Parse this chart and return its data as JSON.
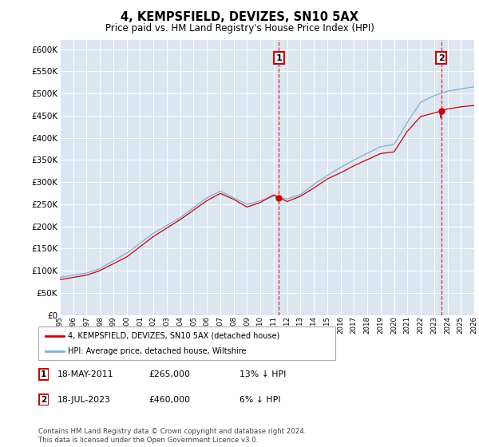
{
  "title": "4, KEMPSFIELD, DEVIZES, SN10 5AX",
  "subtitle": "Price paid vs. HM Land Registry's House Price Index (HPI)",
  "sale1_date": "18-MAY-2011",
  "sale1_price": 265000,
  "sale1_label": "1",
  "sale1_year": 2011.38,
  "sale2_date": "18-JUL-2023",
  "sale2_price": 460000,
  "sale2_label": "2",
  "sale2_year": 2023.54,
  "legend_entry1": "4, KEMPSFIELD, DEVIZES, SN10 5AX (detached house)",
  "legend_entry2": "HPI: Average price, detached house, Wiltshire",
  "table_row1": [
    "1",
    "18-MAY-2011",
    "£265,000",
    "13% ↓ HPI"
  ],
  "table_row2": [
    "2",
    "18-JUL-2023",
    "£460,000",
    "6% ↓ HPI"
  ],
  "footnote": "Contains HM Land Registry data © Crown copyright and database right 2024.\nThis data is licensed under the Open Government Licence v3.0.",
  "ylim": [
    0,
    620000
  ],
  "xlim_start": 1995,
  "xlim_end": 2026,
  "hpi_color": "#7bafd4",
  "price_color": "#cc0000",
  "annotation_color": "#cc0000",
  "background_color": "#dce6f1",
  "hpi_key_points_x": [
    1995,
    1997,
    1998,
    2000,
    2002,
    2004,
    2006,
    2007,
    2008,
    2009,
    2010,
    2011,
    2012,
    2013,
    2014,
    2015,
    2016,
    2017,
    2018,
    2019,
    2020,
    2021,
    2022,
    2023,
    2024,
    2025,
    2026
  ],
  "hpi_key_points_y": [
    85000,
    95000,
    105000,
    140000,
    185000,
    220000,
    265000,
    280000,
    265000,
    250000,
    258000,
    268000,
    262000,
    272000,
    295000,
    315000,
    333000,
    350000,
    365000,
    380000,
    385000,
    435000,
    480000,
    495000,
    505000,
    510000,
    515000
  ],
  "prop_key_points_x": [
    1995,
    1997,
    1998,
    2000,
    2002,
    2004,
    2006,
    2007,
    2008,
    2009,
    2010,
    2011,
    2012,
    2013,
    2014,
    2015,
    2016,
    2017,
    2018,
    2019,
    2020,
    2021,
    2022,
    2023,
    2024,
    2025,
    2026
  ],
  "prop_key_points_y": [
    78000,
    88000,
    98000,
    128000,
    173000,
    210000,
    252000,
    268000,
    255000,
    238000,
    248000,
    265000,
    250000,
    262000,
    280000,
    300000,
    315000,
    332000,
    347000,
    362000,
    367000,
    415000,
    450000,
    460000,
    470000,
    475000,
    478000
  ]
}
